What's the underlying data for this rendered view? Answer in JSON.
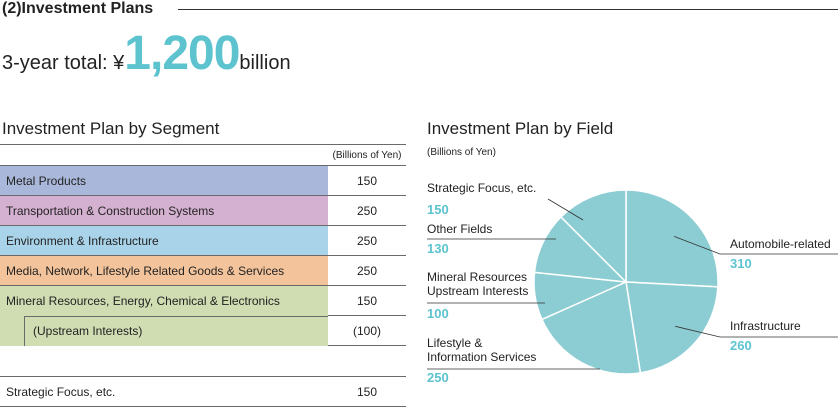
{
  "header": {
    "section_title": "(2)Investment Plans",
    "total_label": "3-year total: ¥",
    "total_value": "1,200",
    "total_unit": "billion"
  },
  "segment_table": {
    "title": "Investment Plan by Segment",
    "unit_note": "(Billions of Yen)",
    "rows": [
      {
        "label": "Metal Products",
        "value": "150",
        "color": "#a9b8da"
      },
      {
        "label": "Transportation & Construction Systems",
        "value": "250",
        "color": "#d5b1d1"
      },
      {
        "label": "Environment & Infrastructure",
        "value": "250",
        "color": "#a9d3e9"
      },
      {
        "label": "Media, Network, Lifestyle Related Goods & Services",
        "value": "250",
        "color": "#f3c49b"
      },
      {
        "label": "Mineral Resources, Energy, Chemical & Electronics",
        "value": "150",
        "color": "#d0ddb2"
      },
      {
        "label": "(Upstream Interests)",
        "value": "(100)",
        "color": "#d0ddb2"
      }
    ],
    "footer_row": {
      "label": "Strategic Focus, etc.",
      "value": "150"
    }
  },
  "chart_data": {
    "type": "pie",
    "title": "Investment Plan by Field",
    "unit_note": "(Billions of Yen)",
    "slices": [
      {
        "label": "Automobile-related",
        "value": 310
      },
      {
        "label": "Infrastructure",
        "value": 260
      },
      {
        "label": "Lifestyle & Information Services",
        "label_lines": [
          "Lifestyle &",
          "Information Services"
        ],
        "value": 250
      },
      {
        "label": "Mineral Resources Upstream Interests",
        "label_lines": [
          "Mineral Resources",
          "Upstream Interests"
        ],
        "value": 100
      },
      {
        "label": "Other Fields",
        "label_lines": [
          "Other Fields"
        ],
        "value": 130
      },
      {
        "label": "Strategic Focus, etc.",
        "label_lines": [
          "Strategic Focus, etc."
        ],
        "value": 150
      }
    ],
    "slice_color": "#8ccdd3",
    "value_color": "#5cc3cf"
  }
}
